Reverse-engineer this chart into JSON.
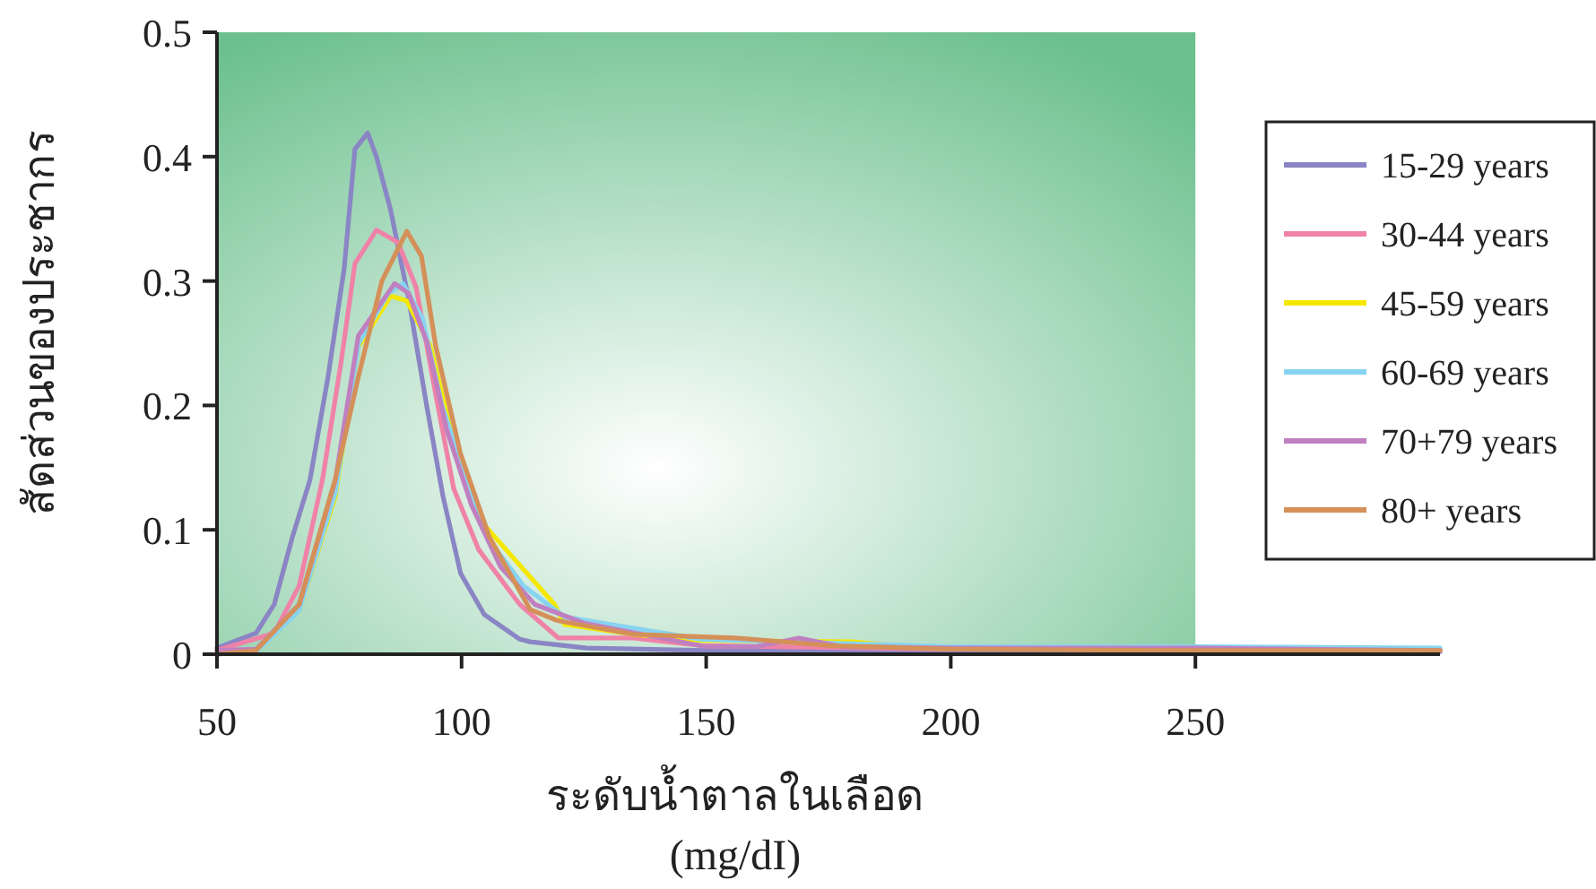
{
  "chart_data": {
    "type": "line",
    "xlabel": "ระดับน้ำตาลในเลือด\n(mg/dI)",
    "ylabel": "สัดส่วนของประชากร",
    "xlim": [
      50,
      300
    ],
    "ylim": [
      0,
      0.5
    ],
    "xticks": [
      50,
      100,
      150,
      200,
      250
    ],
    "yticks": [
      0,
      0.1,
      0.2,
      0.3,
      0.4,
      0.5
    ],
    "bands": [
      {
        "axis": "x",
        "from": 50,
        "to": 250,
        "color": "#6cc08e"
      }
    ],
    "legend": "right",
    "grid": false,
    "marker": "none",
    "line_style": "solid",
    "series": [
      {
        "name": "15-29 years",
        "color": "#8a85c4",
        "x": [
          50,
          58,
          61.7,
          65.4,
          69,
          72.7,
          76,
          78.2,
          80.8,
          82.6,
          85.5,
          89.2,
          92.9,
          96.2,
          99.8,
          104.6,
          111.9,
          114,
          125.5,
          150,
          200,
          250,
          300
        ],
        "values": [
          0.005,
          0.017,
          0.04,
          0.094,
          0.14,
          0.223,
          0.31,
          0.406,
          0.419,
          0.4,
          0.357,
          0.285,
          0.199,
          0.127,
          0.065,
          0.032,
          0.012,
          0.01,
          0.005,
          0.003,
          0.003,
          0.003,
          0.002
        ]
      },
      {
        "name": "30-44 years",
        "color": "#f082a8",
        "x": [
          50,
          61.7,
          66.8,
          71.6,
          75.3,
          78.2,
          82.6,
          87,
          90.7,
          94.7,
          98.4,
          103.5,
          111.9,
          119.8,
          135,
          149,
          200,
          250,
          300
        ],
        "values": [
          0.003,
          0.017,
          0.055,
          0.141,
          0.233,
          0.314,
          0.341,
          0.331,
          0.295,
          0.209,
          0.133,
          0.084,
          0.04,
          0.013,
          0.013,
          0.007,
          0.004,
          0.004,
          0.004
        ]
      },
      {
        "name": "45-59 years",
        "color": "#f5e800",
        "x": [
          66.8,
          74.2,
          78.9,
          85.5,
          88.8,
          93.6,
          98.4,
          104.6,
          119,
          121,
          135,
          149,
          180,
          185,
          200
        ],
        "values": [
          0.035,
          0.127,
          0.247,
          0.288,
          0.284,
          0.248,
          0.17,
          0.104,
          0.04,
          0.024,
          0.016,
          0.011,
          0.01,
          0.008,
          0.004
        ]
      },
      {
        "name": "60-69 years",
        "color": "#88d4f0",
        "x": [
          50,
          58,
          66.8,
          74.2,
          79,
          85,
          88,
          92,
          96,
          101,
          106,
          112.6,
          121,
          149,
          200,
          250,
          300
        ],
        "values": [
          0,
          0.002,
          0.035,
          0.13,
          0.25,
          0.29,
          0.298,
          0.27,
          0.2,
          0.14,
          0.09,
          0.055,
          0.03,
          0.012,
          0.006,
          0.006,
          0.005
        ]
      },
      {
        "name": "70+79 years",
        "color": "#c080c0",
        "x": [
          50,
          58,
          66.8,
          74.2,
          78.9,
          86.3,
          89.2,
          93,
          97,
          102,
          108,
          115,
          125,
          150,
          160,
          169,
          178,
          200,
          250,
          300
        ],
        "values": [
          0.003,
          0.004,
          0.04,
          0.14,
          0.256,
          0.298,
          0.29,
          0.25,
          0.18,
          0.12,
          0.07,
          0.04,
          0.025,
          0.006,
          0.006,
          0.013,
          0.006,
          0.005,
          0.005,
          0.003
        ]
      },
      {
        "name": "80+ years",
        "color": "#d49058",
        "x": [
          50,
          58,
          66.8,
          74.2,
          78.9,
          83.7,
          88.8,
          91.8,
          94.7,
          99.8,
          105.7,
          114,
          119.6,
          135,
          156,
          175,
          200,
          250,
          300
        ],
        "values": [
          0,
          0.003,
          0.04,
          0.141,
          0.223,
          0.3,
          0.34,
          0.32,
          0.248,
          0.161,
          0.094,
          0.036,
          0.027,
          0.016,
          0.013,
          0.007,
          0.004,
          0.003,
          0.003
        ]
      }
    ]
  }
}
